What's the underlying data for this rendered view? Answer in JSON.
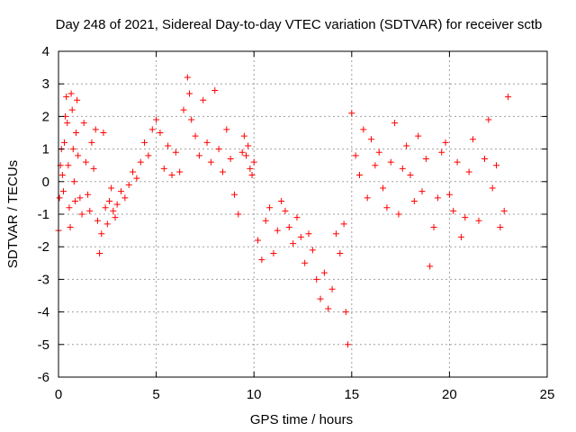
{
  "chart_data": {
    "type": "scatter",
    "title": "Day 248 of 2021, Sidereal Day-to-day VTEC variation (SDTVAR) for receiver sctb",
    "xlabel": "GPS time / hours",
    "ylabel": "SDTVAR / TECUs",
    "xlim": [
      0,
      25
    ],
    "ylim": [
      -6,
      4
    ],
    "xticks": [
      0,
      5,
      10,
      15,
      20,
      25
    ],
    "yticks": [
      -6,
      -5,
      -4,
      -3,
      -2,
      -1,
      0,
      1,
      2,
      3,
      4
    ],
    "grid": true,
    "legend": "none",
    "marker": "+",
    "series": [
      {
        "name": "SDTVAR",
        "color": "#ff0000",
        "x": [
          0.0,
          0.05,
          0.1,
          0.15,
          0.2,
          0.25,
          0.3,
          0.35,
          0.4,
          0.45,
          0.5,
          0.55,
          0.6,
          0.65,
          0.7,
          0.75,
          0.8,
          0.85,
          0.9,
          0.95,
          1.0,
          1.1,
          1.2,
          1.3,
          1.4,
          1.5,
          1.6,
          1.7,
          1.8,
          1.9,
          2.0,
          2.1,
          2.2,
          2.3,
          2.4,
          2.5,
          2.6,
          2.7,
          2.8,
          2.9,
          3.0,
          3.2,
          3.4,
          3.6,
          3.8,
          4.0,
          4.2,
          4.4,
          4.6,
          4.8,
          5.0,
          5.2,
          5.4,
          5.6,
          5.8,
          6.0,
          6.2,
          6.4,
          6.6,
          6.7,
          6.8,
          7.0,
          7.2,
          7.4,
          7.6,
          7.8,
          8.0,
          8.2,
          8.4,
          8.6,
          8.8,
          9.0,
          9.2,
          9.4,
          9.5,
          9.6,
          9.7,
          9.8,
          9.9,
          10.0,
          10.2,
          10.4,
          10.6,
          10.8,
          11.0,
          11.2,
          11.4,
          11.6,
          11.8,
          12.0,
          12.2,
          12.4,
          12.6,
          12.8,
          13.0,
          13.2,
          13.4,
          13.6,
          13.8,
          14.0,
          14.2,
          14.4,
          14.6,
          14.7,
          14.8,
          15.0,
          15.2,
          15.4,
          15.6,
          15.8,
          16.0,
          16.2,
          16.4,
          16.6,
          16.8,
          17.0,
          17.2,
          17.4,
          17.6,
          17.8,
          18.0,
          18.2,
          18.4,
          18.6,
          18.8,
          19.0,
          19.2,
          19.4,
          19.6,
          19.8,
          20.0,
          20.2,
          20.4,
          20.6,
          20.8,
          21.0,
          21.2,
          21.5,
          21.8,
          22.0,
          22.2,
          22.4,
          22.6,
          22.8,
          23.0
        ],
        "y": [
          -1.5,
          -0.5,
          0.5,
          1.0,
          0.2,
          -0.3,
          1.2,
          2.0,
          2.6,
          1.8,
          0.5,
          -0.8,
          -1.4,
          2.7,
          2.2,
          1.0,
          0.0,
          -0.6,
          1.5,
          2.5,
          0.8,
          -0.5,
          -1.0,
          1.8,
          0.6,
          -0.4,
          -0.9,
          1.2,
          0.4,
          1.6,
          -1.2,
          -2.2,
          -1.6,
          1.5,
          -0.8,
          -1.3,
          -0.6,
          -0.2,
          -0.9,
          -1.1,
          -0.7,
          -0.3,
          -0.5,
          -0.1,
          0.3,
          0.1,
          0.6,
          1.2,
          0.8,
          1.6,
          1.9,
          1.5,
          0.4,
          1.1,
          0.2,
          0.9,
          0.3,
          2.2,
          3.2,
          2.7,
          1.9,
          1.4,
          0.8,
          2.5,
          1.2,
          0.6,
          2.8,
          1.0,
          0.3,
          1.6,
          0.7,
          -0.4,
          -1.0,
          0.9,
          1.4,
          0.8,
          1.1,
          0.4,
          0.2,
          0.6,
          -1.8,
          -2.4,
          -1.2,
          -0.8,
          -2.2,
          -1.5,
          -0.6,
          -0.9,
          -1.4,
          -1.9,
          -1.1,
          -1.7,
          -2.5,
          -1.6,
          -2.1,
          -3.0,
          -3.6,
          -2.8,
          -3.9,
          -3.3,
          -1.6,
          -2.2,
          -1.3,
          -4.0,
          -5.0,
          2.1,
          0.8,
          0.2,
          1.6,
          -0.5,
          1.3,
          0.5,
          0.9,
          -0.2,
          -0.8,
          0.6,
          1.8,
          -1.0,
          0.4,
          1.1,
          0.2,
          -0.6,
          1.4,
          -0.3,
          0.7,
          -2.6,
          -1.4,
          -0.5,
          0.9,
          1.2,
          -0.4,
          -0.9,
          0.6,
          -1.7,
          -1.1,
          0.3,
          1.3,
          -1.2,
          0.7,
          1.9,
          -0.2,
          0.5,
          -1.4,
          -0.9,
          2.6
        ]
      }
    ]
  }
}
